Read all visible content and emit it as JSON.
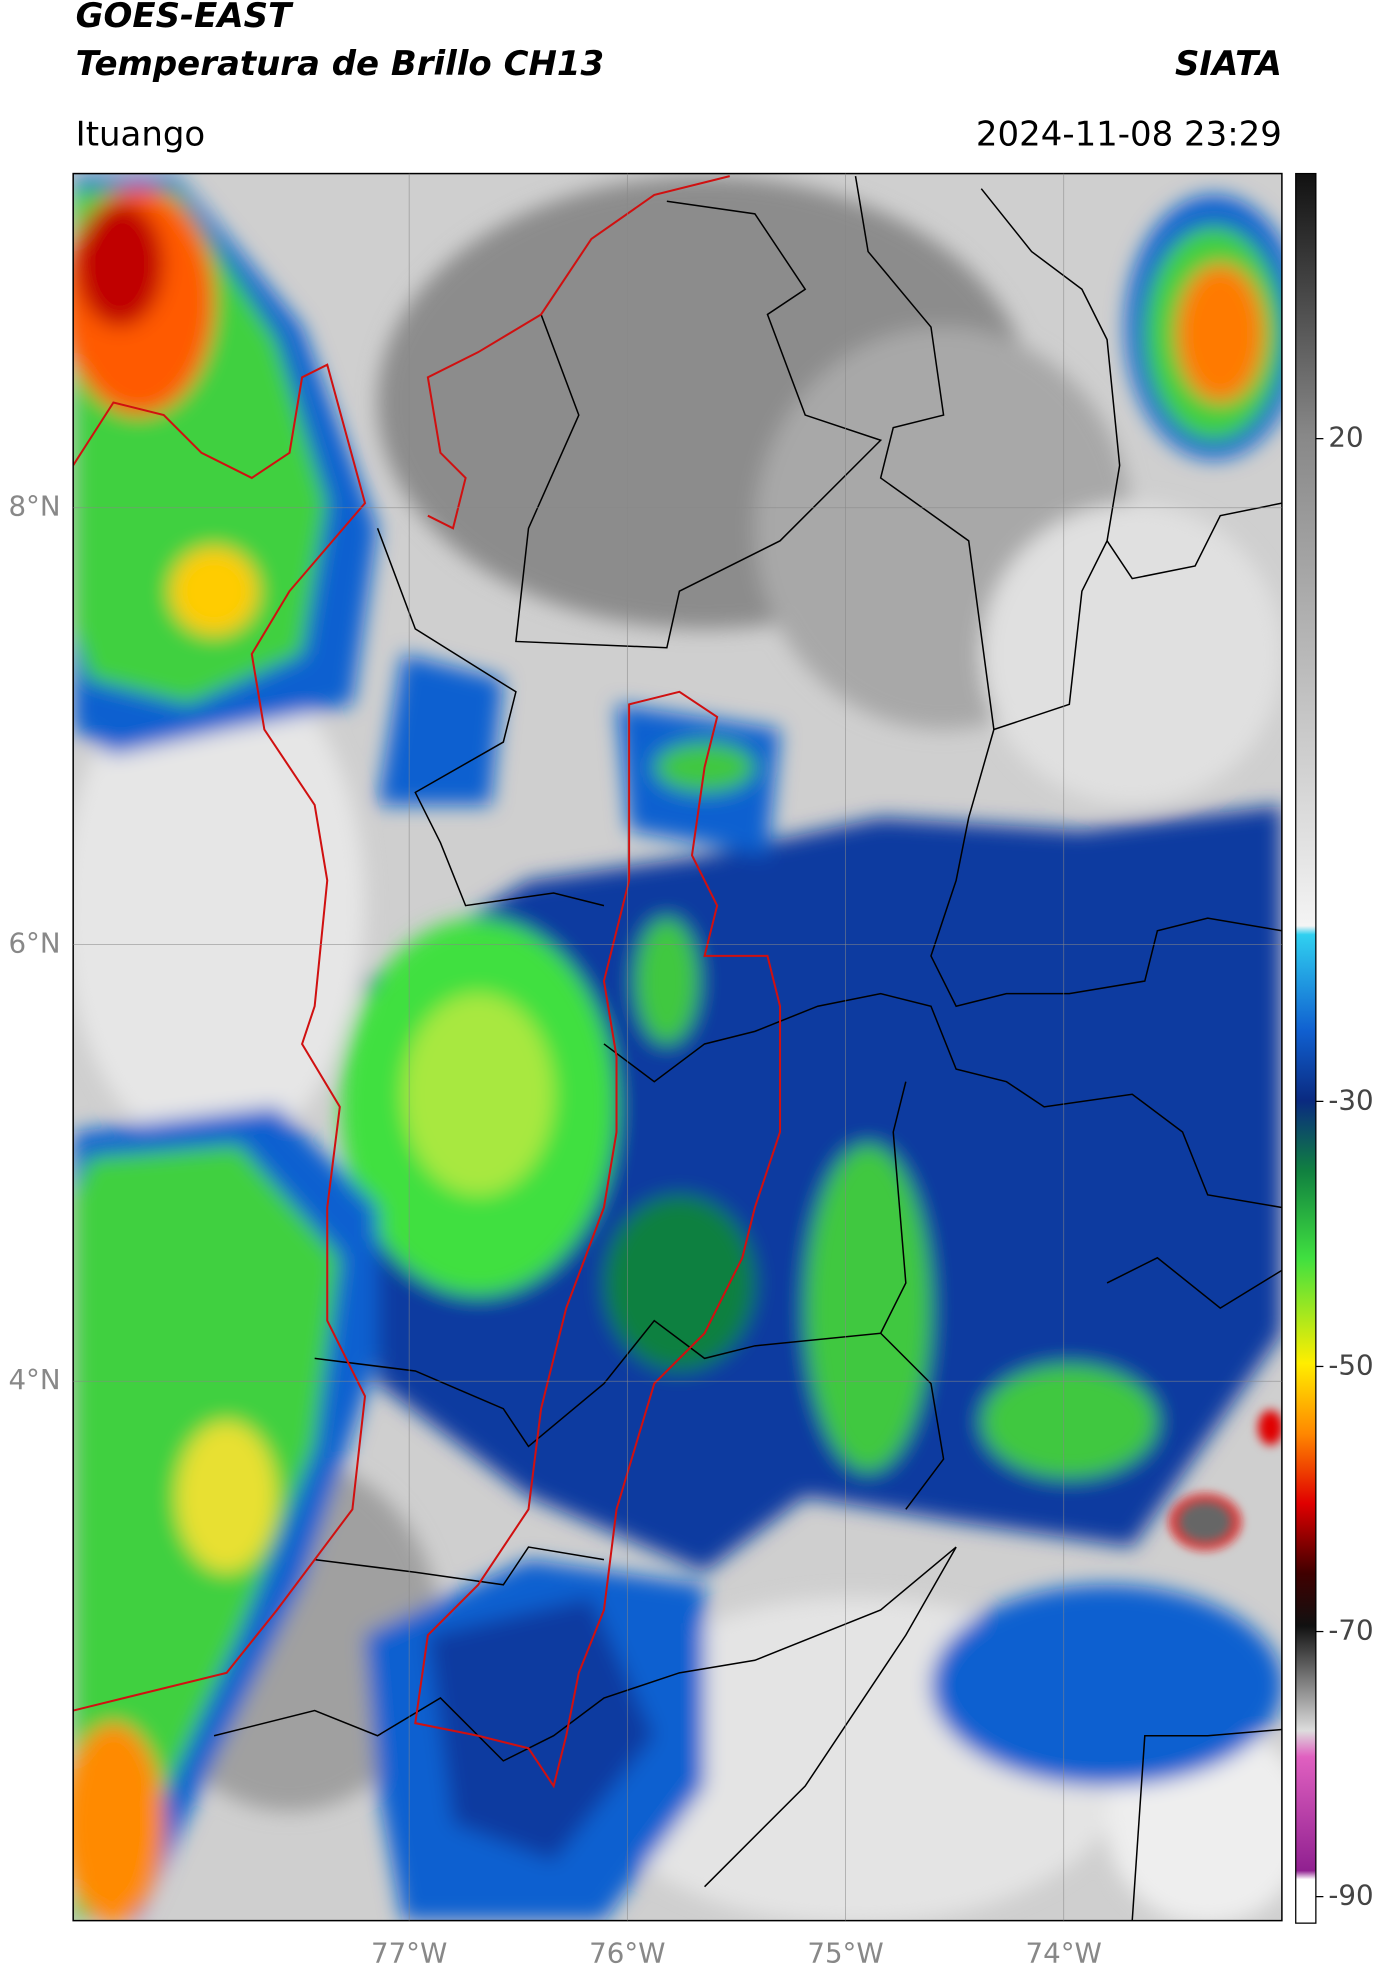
{
  "title": "GOES-EAST",
  "subtitle": "Temperatura de Brillo CH13",
  "source": "SIATA",
  "location": "Ituango",
  "timestamp": "2024-11-08 23:29",
  "map": {
    "xlim": [
      -78.54,
      -73.0
    ],
    "ylim": [
      1.53,
      9.53
    ],
    "xticks": [
      {
        "value": -77,
        "label": "77°W"
      },
      {
        "value": -76,
        "label": "76°W"
      },
      {
        "value": -75,
        "label": "75°W"
      },
      {
        "value": -74,
        "label": "74°W"
      }
    ],
    "yticks": [
      {
        "value": 8,
        "label": "8°N"
      },
      {
        "value": 6,
        "label": "6°N"
      },
      {
        "value": 4,
        "label": "4°N"
      }
    ],
    "grid": true
  },
  "colorbar": {
    "lim": [
      -92,
      40
    ],
    "ticks": [
      20,
      -30,
      -50,
      -70,
      -90
    ]
  }
}
